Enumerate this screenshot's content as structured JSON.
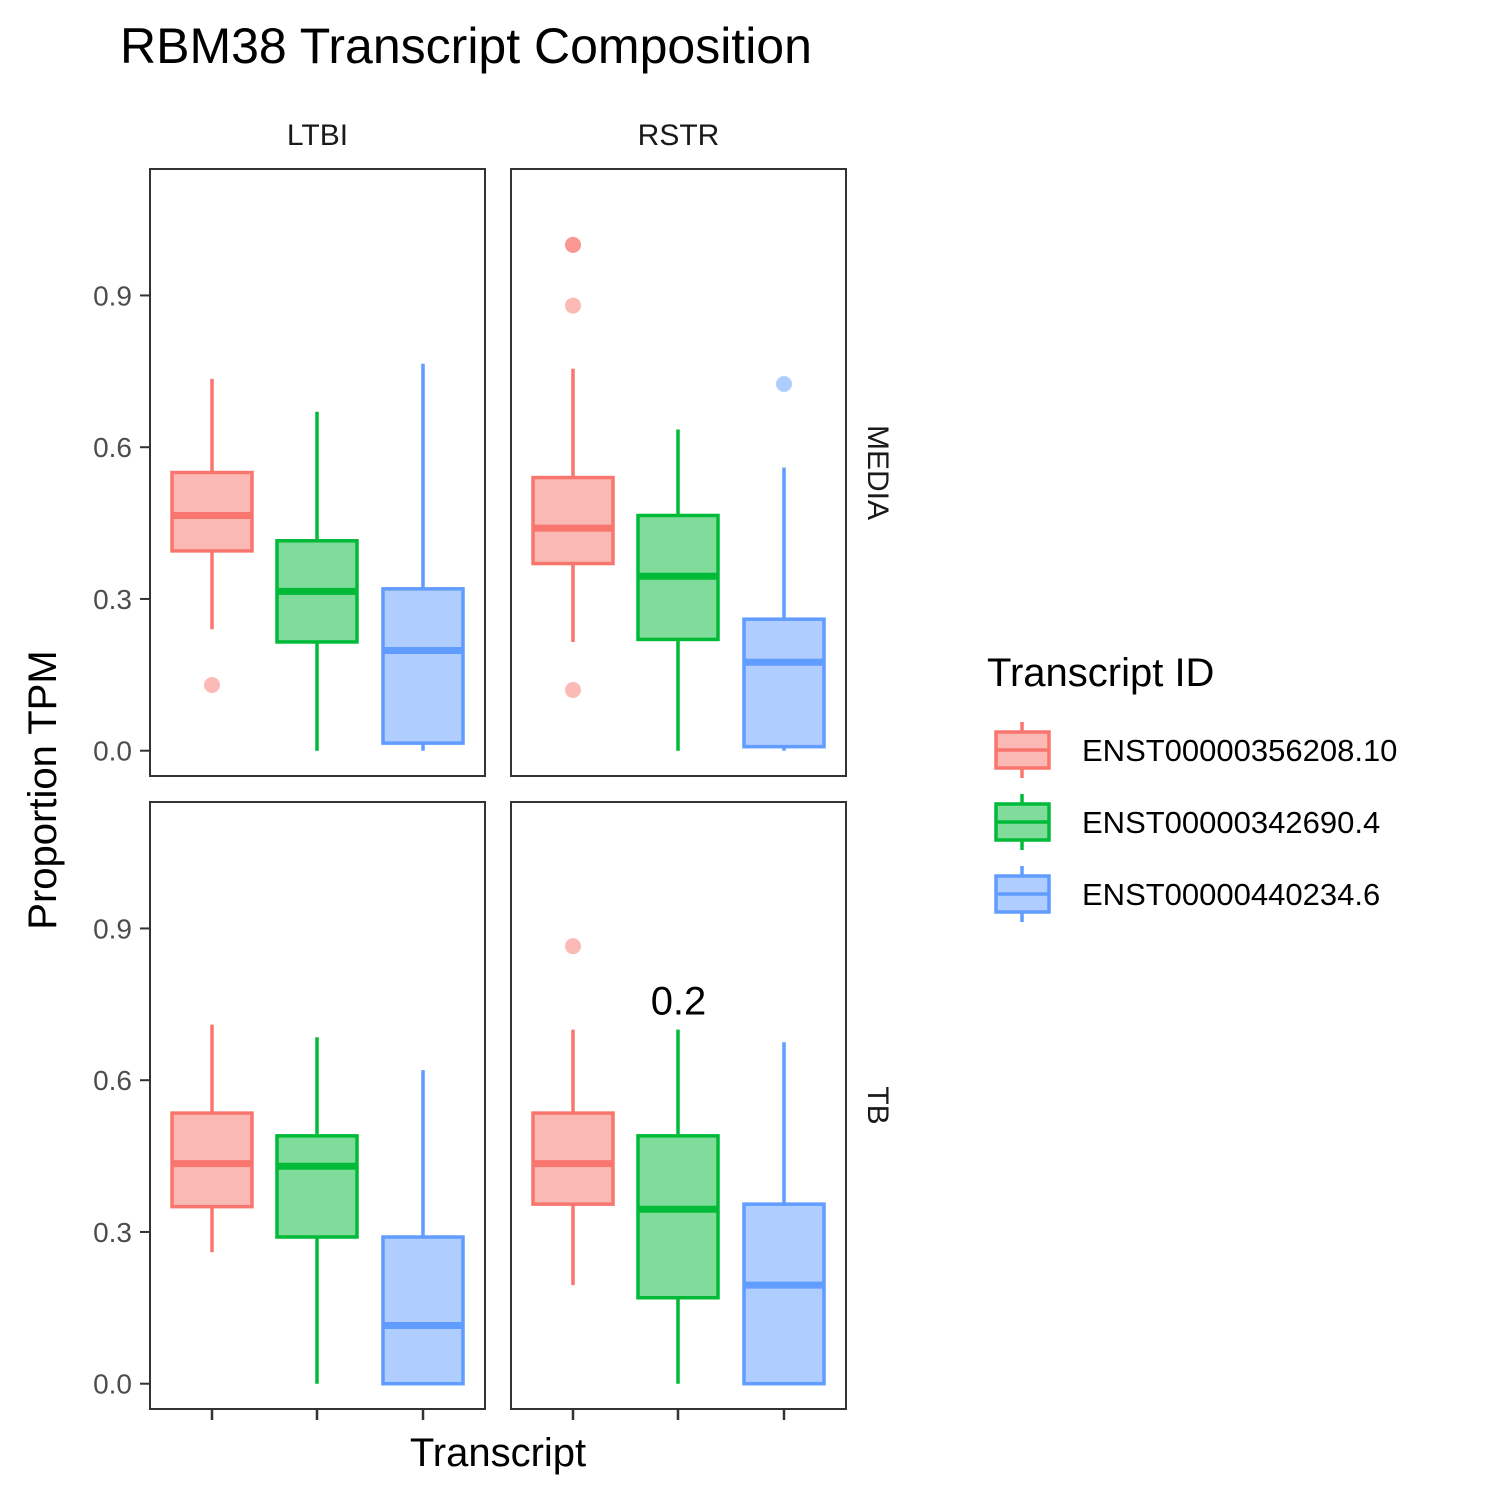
{
  "chart_data": {
    "type": "boxplot",
    "title": "RBM38 Transcript Composition",
    "xlabel": "Transcript",
    "ylabel": "Proportion TPM",
    "ylim": [
      -0.05,
      1.15
    ],
    "yticks": [
      "0.0",
      "0.3",
      "0.6",
      "0.9"
    ],
    "ytick_values": [
      0,
      0.3,
      0.6,
      0.9
    ],
    "column_facets": [
      "LTBI",
      "RSTR"
    ],
    "row_facets": [
      "MEDIA",
      "TB"
    ],
    "legend": {
      "title": "Transcript ID",
      "position": "right"
    },
    "series": [
      {
        "name": "ENST00000356208.10",
        "color": "#F8766D",
        "fill": "#FBB9B5"
      },
      {
        "name": "ENST00000342690.4",
        "color": "#00BA38",
        "fill": "#80DC9B"
      },
      {
        "name": "ENST00000440234.6",
        "color": "#619CFF",
        "fill": "#B0CDFF"
      }
    ],
    "panels": [
      {
        "row": "MEDIA",
        "col": "LTBI",
        "boxes": [
          {
            "lower": 0.24,
            "q1": 0.395,
            "median": 0.465,
            "q3": 0.55,
            "upper": 0.735,
            "outliers": [
              0.13
            ]
          },
          {
            "lower": 0.0,
            "q1": 0.215,
            "median": 0.315,
            "q3": 0.415,
            "upper": 0.67,
            "outliers": []
          },
          {
            "lower": 0.0,
            "q1": 0.015,
            "median": 0.198,
            "q3": 0.32,
            "upper": 0.765,
            "outliers": []
          }
        ]
      },
      {
        "row": "MEDIA",
        "col": "RSTR",
        "boxes": [
          {
            "lower": 0.215,
            "q1": 0.37,
            "median": 0.44,
            "q3": 0.54,
            "upper": 0.755,
            "outliers": [
              0.12,
              0.88,
              1.0,
              1.0
            ]
          },
          {
            "lower": 0.0,
            "q1": 0.22,
            "median": 0.345,
            "q3": 0.465,
            "upper": 0.635,
            "outliers": []
          },
          {
            "lower": 0.0,
            "q1": 0.008,
            "median": 0.175,
            "q3": 0.26,
            "upper": 0.56,
            "outliers": [
              0.725
            ]
          }
        ]
      },
      {
        "row": "TB",
        "col": "LTBI",
        "boxes": [
          {
            "lower": 0.26,
            "q1": 0.35,
            "median": 0.435,
            "q3": 0.535,
            "upper": 0.71,
            "outliers": []
          },
          {
            "lower": 0.0,
            "q1": 0.29,
            "median": 0.43,
            "q3": 0.49,
            "upper": 0.685,
            "outliers": []
          },
          {
            "lower": 0.0,
            "q1": 0.0,
            "median": 0.115,
            "q3": 0.29,
            "upper": 0.62,
            "outliers": []
          }
        ]
      },
      {
        "row": "TB",
        "col": "RSTR",
        "annotation": "0.2",
        "boxes": [
          {
            "lower": 0.195,
            "q1": 0.355,
            "median": 0.435,
            "q3": 0.535,
            "upper": 0.7,
            "outliers": [
              0.865
            ]
          },
          {
            "lower": 0.0,
            "q1": 0.17,
            "median": 0.345,
            "q3": 0.49,
            "upper": 0.7,
            "outliers": []
          },
          {
            "lower": 0.0,
            "q1": 0.0,
            "median": 0.195,
            "q3": 0.355,
            "upper": 0.675,
            "outliers": []
          }
        ]
      }
    ]
  }
}
